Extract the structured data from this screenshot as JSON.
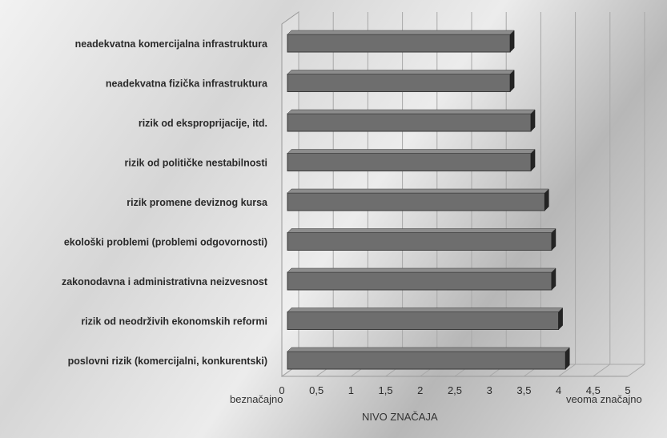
{
  "chart_data": {
    "type": "bar",
    "orientation": "horizontal",
    "categories": [
      "neadekvatna komercijalna infrastruktura",
      "neadekvatna fizička infrastruktura",
      "rizik od eksproprijacije, itd.",
      "rizik od političke nestabilnosti",
      "rizik promene deviznog kursa",
      "ekološki problemi (problemi odgovornosti)",
      "zakonodavna i administrativna neizvesnost",
      "rizik od neodrživih ekonomskih reformi",
      "poslovni rizik (komercijalni, konkurentski)"
    ],
    "values": [
      3.3,
      3.3,
      3.6,
      3.6,
      3.8,
      3.9,
      3.9,
      4.0,
      4.1
    ],
    "xlim": [
      0,
      5
    ],
    "xticks": [
      "0",
      "0,5",
      "1",
      "1,5",
      "2",
      "2,5",
      "3",
      "3,5",
      "4",
      "4,5",
      "5"
    ],
    "xlabel": "NIVO ZNAČAJA",
    "x_min_note": "beznačajno",
    "x_max_note": "veoma značajno",
    "grid": true,
    "three_d": true,
    "bar_color": "#6e6e6e"
  }
}
